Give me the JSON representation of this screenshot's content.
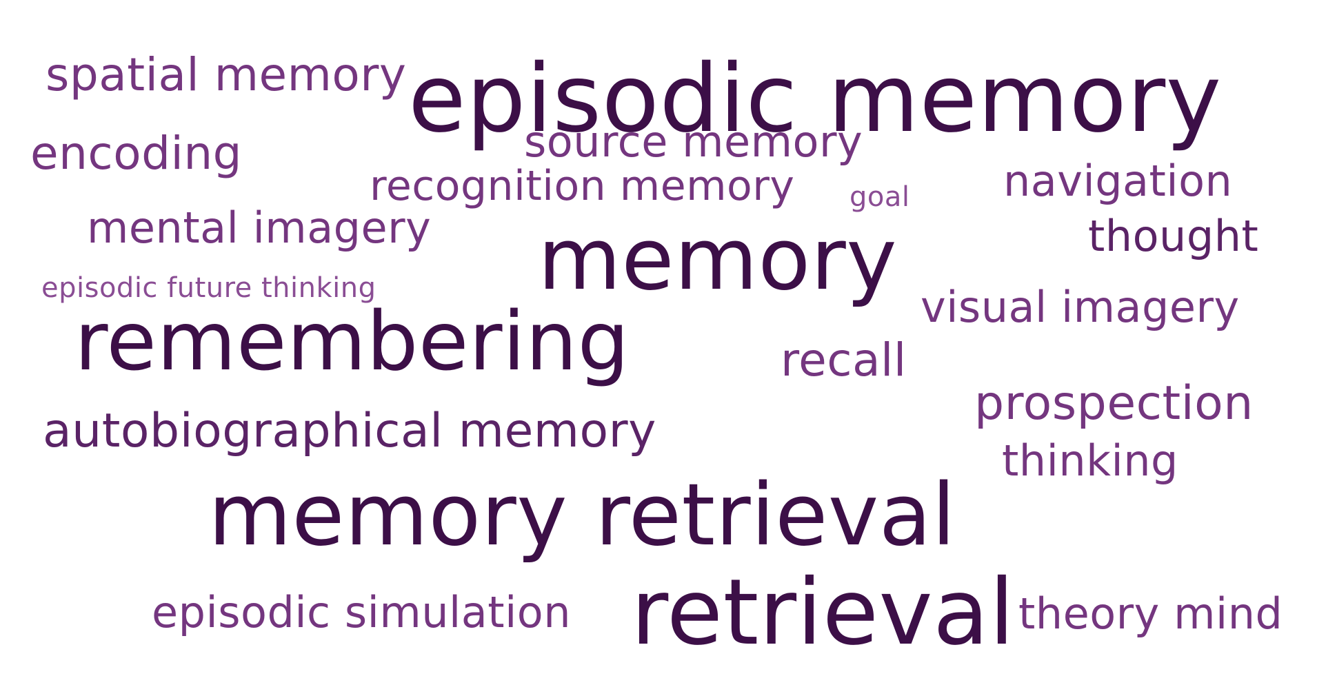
{
  "cloud": {
    "words": [
      {
        "text": "spatial memory",
        "color": "#74367f"
      },
      {
        "text": "episodic memory",
        "color": "#3c0f47"
      },
      {
        "text": "encoding",
        "color": "#74367f"
      },
      {
        "text": "source memory",
        "color": "#74367f"
      },
      {
        "text": "recognition memory",
        "color": "#74367f"
      },
      {
        "text": "goal",
        "color": "#8a4d94"
      },
      {
        "text": "navigation",
        "color": "#74367f"
      },
      {
        "text": "mental imagery",
        "color": "#74367f"
      },
      {
        "text": "thought",
        "color": "#5a2366"
      },
      {
        "text": "memory",
        "color": "#3c0f47"
      },
      {
        "text": "episodic future thinking",
        "color": "#8a4d94"
      },
      {
        "text": "visual imagery",
        "color": "#74367f"
      },
      {
        "text": "remembering",
        "color": "#3c0f47"
      },
      {
        "text": "recall",
        "color": "#74367f"
      },
      {
        "text": "prospection",
        "color": "#74367f"
      },
      {
        "text": "autobiographical memory",
        "color": "#5a2366"
      },
      {
        "text": "thinking",
        "color": "#74367f"
      },
      {
        "text": "memory retrieval",
        "color": "#3c0f47"
      },
      {
        "text": "episodic simulation",
        "color": "#74367f"
      },
      {
        "text": "retrieval",
        "color": "#3c0f47"
      },
      {
        "text": "theory mind",
        "color": "#74367f"
      }
    ]
  }
}
